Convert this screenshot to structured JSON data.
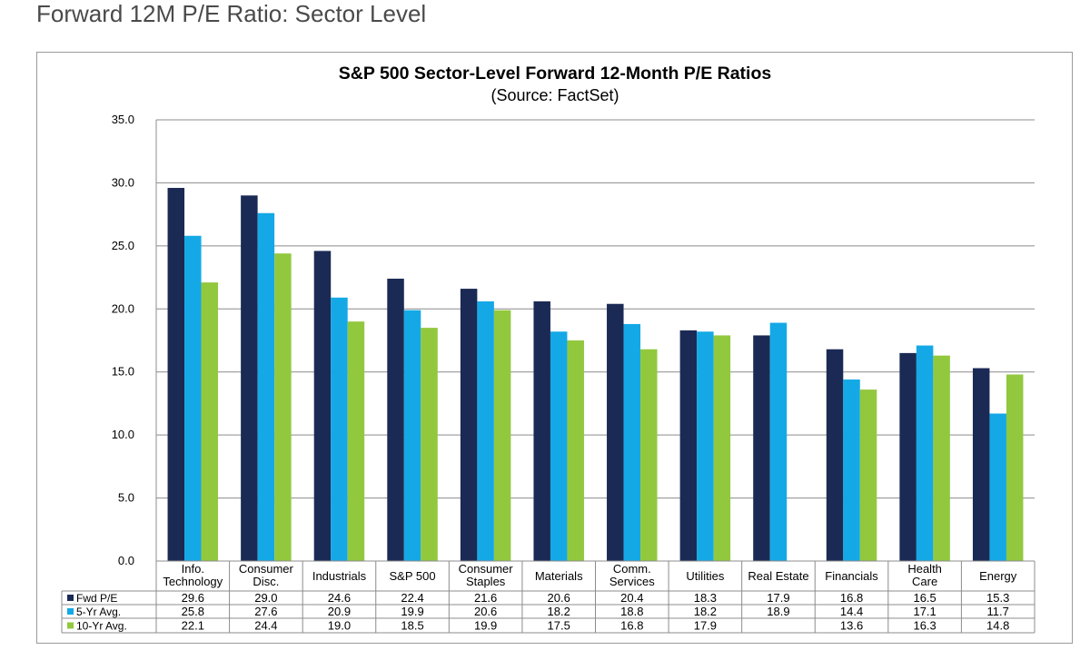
{
  "page": {
    "heading": "Forward 12M P/E Ratio: Sector Level"
  },
  "chart_data": {
    "type": "bar",
    "title": "S&P 500 Sector-Level Forward 12-Month P/E Ratios",
    "subtitle": "(Source: FactSet)",
    "xlabel": "",
    "ylabel": "",
    "ylim": [
      0,
      35
    ],
    "yticks": [
      "0.0",
      "5.0",
      "10.0",
      "15.0",
      "20.0",
      "25.0",
      "30.0",
      "35.0"
    ],
    "grid": true,
    "legend": "data-table-left",
    "categories": [
      [
        "Info.",
        "Technology"
      ],
      [
        "Consumer",
        "Disc."
      ],
      [
        "Industrials"
      ],
      [
        "S&P 500"
      ],
      [
        "Consumer",
        "Staples"
      ],
      [
        "Materials"
      ],
      [
        "Comm.",
        "Services"
      ],
      [
        "Utilities"
      ],
      [
        "Real Estate"
      ],
      [
        "Financials"
      ],
      [
        "Health",
        "Care"
      ],
      [
        "Energy"
      ]
    ],
    "series": [
      {
        "name": "Fwd P/E",
        "color": "#1b2a55",
        "values": [
          29.6,
          29.0,
          24.6,
          22.4,
          21.6,
          20.6,
          20.4,
          18.3,
          17.9,
          16.8,
          16.5,
          15.3
        ],
        "labels": [
          "29.6",
          "29.0",
          "24.6",
          "22.4",
          "21.6",
          "20.6",
          "20.4",
          "18.3",
          "17.9",
          "16.8",
          "16.5",
          "15.3"
        ]
      },
      {
        "name": "5-Yr Avg.",
        "color": "#14a9e6",
        "values": [
          25.8,
          27.6,
          20.9,
          19.9,
          20.6,
          18.2,
          18.8,
          18.2,
          18.9,
          14.4,
          17.1,
          11.7
        ],
        "labels": [
          "25.8",
          "27.6",
          "20.9",
          "19.9",
          "20.6",
          "18.2",
          "18.8",
          "18.2",
          "18.9",
          "14.4",
          "17.1",
          "11.7"
        ]
      },
      {
        "name": "10-Yr Avg.",
        "color": "#92c83e",
        "values": [
          22.1,
          24.4,
          19.0,
          18.5,
          19.9,
          17.5,
          16.8,
          17.9,
          null,
          13.6,
          16.3,
          14.8
        ],
        "labels": [
          "22.1",
          "24.4",
          "19.0",
          "18.5",
          "19.9",
          "17.5",
          "16.8",
          "17.9",
          "",
          "13.6",
          "16.3",
          "14.8"
        ]
      }
    ]
  }
}
